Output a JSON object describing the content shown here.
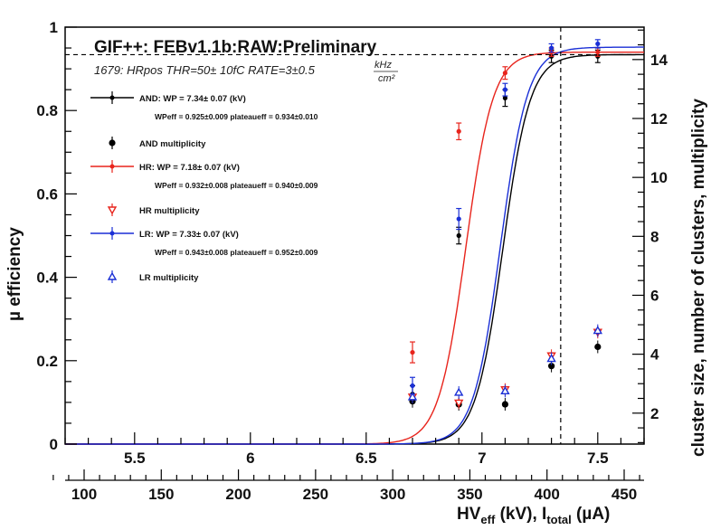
{
  "chart_data": {
    "type": "scatter",
    "title": "GIF++: FEBv1.1b:RAW:Preliminary",
    "subtitle": {
      "prefix": "1679: HRpos THR=50± 10fC RATE=3±0.5",
      "frac_num": "kHz",
      "frac_den": "cm²"
    },
    "x_bottom": {
      "ticks": [
        5.5,
        6,
        6.5,
        7,
        7.5
      ],
      "tick_labels": [
        "5.5",
        "6",
        "6.5",
        "7",
        "7.5"
      ],
      "range": [
        5.2,
        7.7
      ]
    },
    "x_current": {
      "ticks": [
        100,
        150,
        200,
        250,
        300,
        350,
        400,
        450
      ],
      "tick_labels": [
        "100",
        "150",
        "200",
        "250",
        "300",
        "350",
        "400",
        "450"
      ],
      "label_main": "HV",
      "label_sub1": "eff",
      "label_mid": " (kV), I",
      "label_sub2": "total",
      "label_end": " (µA)"
    },
    "y_left": {
      "label": "µ efficiency",
      "range": [
        0,
        1
      ],
      "ticks": [
        0,
        0.2,
        0.4,
        0.6,
        0.8,
        1
      ],
      "tick_labels": [
        "0",
        "0.2",
        "0.4",
        "0.6",
        "0.8",
        "1"
      ]
    },
    "y_right": {
      "label": "cluster size, number of clusters, multiplicity",
      "range": [
        0.95,
        15.1
      ],
      "ticks": [
        2,
        4,
        6,
        8,
        10,
        12,
        14
      ],
      "tick_labels": [
        "2",
        "4",
        "6",
        "8",
        "10",
        "12",
        "14"
      ]
    },
    "dashed_vline_x": 7.34,
    "dashed_hline_y": 0.934,
    "series": [
      {
        "name": "AND",
        "color": "#000000",
        "wp": 7.34,
        "plateau": 0.934,
        "slope": 17,
        "efficiency": {
          "x": [
            6.7,
            6.9,
            7.1,
            7.3,
            7.5
          ],
          "y": [
            0.12,
            0.5,
            0.83,
            0.93,
            0.93
          ],
          "err": [
            0.02,
            0.02,
            0.02,
            0.015,
            0.015
          ]
        },
        "multiplicity": {
          "x": [
            6.7,
            6.9,
            7.1,
            7.3,
            7.5
          ],
          "y": [
            2.4,
            2.3,
            2.3,
            3.6,
            4.25
          ]
        }
      },
      {
        "name": "HR",
        "color": "#e8241c",
        "wp": 7.18,
        "plateau": 0.94,
        "slope": 17,
        "efficiency": {
          "x": [
            6.7,
            6.9,
            7.1,
            7.3,
            7.5
          ],
          "y": [
            0.22,
            0.75,
            0.89,
            0.94,
            0.94
          ],
          "err": [
            0.025,
            0.02,
            0.015,
            0.01,
            0.01
          ]
        },
        "multiplicity": {
          "x": [
            6.7,
            6.9,
            7.1,
            7.3,
            7.5
          ],
          "y": [
            2.55,
            2.35,
            2.8,
            3.95,
            4.75
          ]
        }
      },
      {
        "name": "LR",
        "color": "#1a2fd6",
        "wp": 7.33,
        "plateau": 0.952,
        "slope": 17,
        "efficiency": {
          "x": [
            6.7,
            6.9,
            7.1,
            7.3,
            7.5
          ],
          "y": [
            0.14,
            0.54,
            0.85,
            0.95,
            0.96
          ],
          "err": [
            0.02,
            0.025,
            0.015,
            0.01,
            0.01
          ]
        },
        "multiplicity": {
          "x": [
            6.7,
            6.9,
            7.1,
            7.3,
            7.5
          ],
          "y": [
            2.55,
            2.7,
            2.75,
            3.85,
            4.8
          ]
        }
      }
    ],
    "legend": {
      "entries": [
        {
          "kind": "line",
          "color": "#000000",
          "text": "AND: WP = 7.34± 0.07 (kV)",
          "sub": "WPeff = 0.925±0.009 plateaueff = 0.934±0.010"
        },
        {
          "kind": "marker",
          "color": "#000000",
          "marker": "filled",
          "text": "AND multiplicity"
        },
        {
          "kind": "line",
          "color": "#e8241c",
          "text": "HR: WP = 7.18± 0.07 (kV)",
          "sub": "WPeff = 0.932±0.008 plateaueff = 0.940±0.009"
        },
        {
          "kind": "marker",
          "color": "#e8241c",
          "marker": "open-down",
          "text": "HR multiplicity"
        },
        {
          "kind": "line",
          "color": "#1a2fd6",
          "text": "LR: WP = 7.33± 0.07 (kV)",
          "sub": "WPeff = 0.943±0.008 plateaueff = 0.952±0.009"
        },
        {
          "kind": "marker",
          "color": "#1a2fd6",
          "marker": "open-up",
          "text": "LR multiplicity"
        }
      ]
    }
  }
}
